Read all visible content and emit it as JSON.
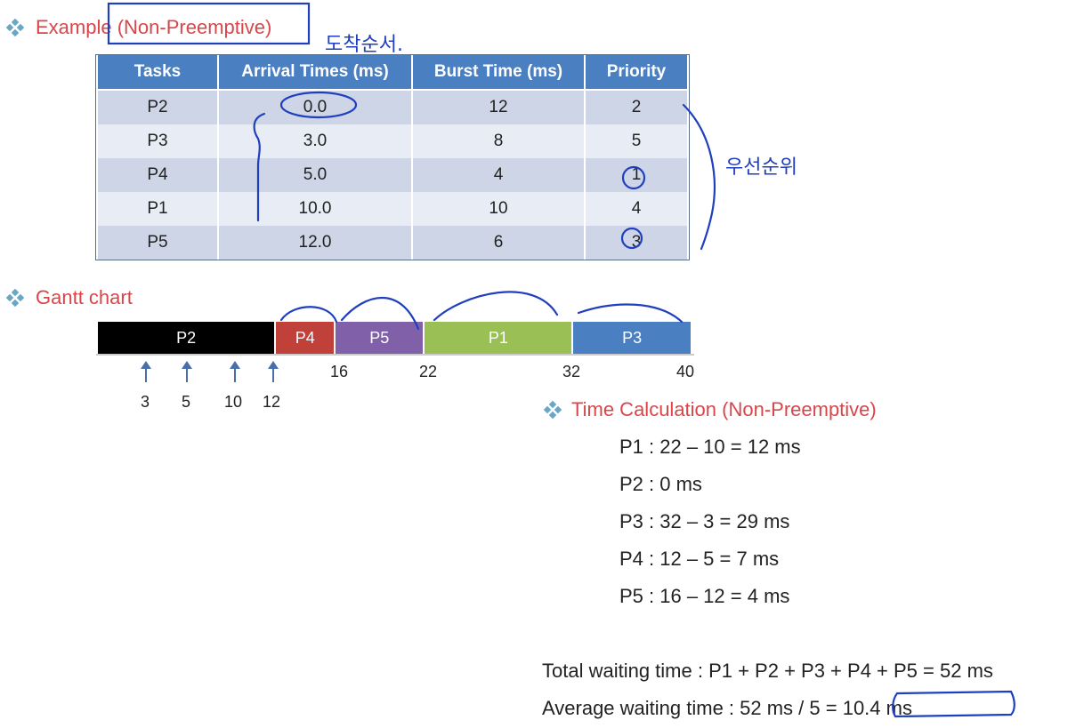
{
  "example": {
    "title": "Example (Non-Preemptive)"
  },
  "table": {
    "headers": [
      "Tasks",
      "Arrival Times (ms)",
      "Burst Time (ms)",
      "Priority"
    ],
    "rows": [
      [
        "P2",
        "0.0",
        "12",
        "2"
      ],
      [
        "P3",
        "3.0",
        "8",
        "5"
      ],
      [
        "P4",
        "5.0",
        "4",
        "1"
      ],
      [
        "P1",
        "10.0",
        "10",
        "4"
      ],
      [
        "P5",
        "12.0",
        "6",
        "3"
      ]
    ]
  },
  "gantt": {
    "title": "Gantt chart",
    "bars": [
      {
        "label": "P2",
        "start": 0,
        "end": 12,
        "color": "#000000"
      },
      {
        "label": "P4",
        "start": 12,
        "end": 16,
        "color": "#c0403a"
      },
      {
        "label": "P5",
        "start": 16,
        "end": 22,
        "color": "#8060a8"
      },
      {
        "label": "P1",
        "start": 22,
        "end": 32,
        "color": "#9ac055"
      },
      {
        "label": "P3",
        "start": 32,
        "end": 40,
        "color": "#4a7fc1"
      }
    ],
    "ticks": [
      "16",
      "22",
      "32",
      "40"
    ],
    "arrivals": [
      "3",
      "5",
      "10",
      "12"
    ]
  },
  "calc": {
    "title": "Time Calculation (Non-Preemptive)",
    "lines": [
      "P1 : 22 – 10 = 12 ms",
      "P2 : 0 ms",
      "P3 : 32 – 3 = 29 ms",
      "P4 : 12 – 5 = 7 ms",
      "P5 : 16 – 12 = 4 ms"
    ],
    "total": "Total waiting time : P1 + P2 + P3 + P4 + P5 = 52 ms",
    "average_prefix": "Average waiting time : 52 ms / 5 = ",
    "average_value": "10.4 ms"
  },
  "handwriting": {
    "arrival_note": "도착순서.",
    "priority_note": "우선순위"
  },
  "colors": {
    "heading": "#d8464a",
    "header_bg": "#4a7fc1",
    "ink": "#1f3fbf"
  }
}
